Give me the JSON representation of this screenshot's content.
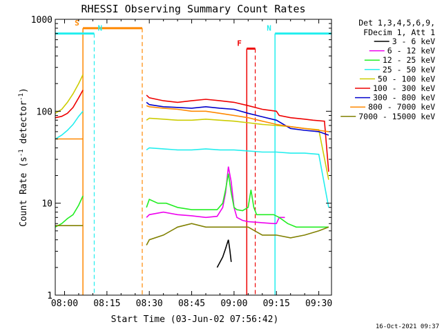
{
  "chart_data": {
    "type": "line",
    "title": "RHESSI Observing Summary Count Rates",
    "xlabel": "Start Time (03-Jun-02 07:56:42)",
    "ylabel_base": "Count Rate (s",
    "ylabel_sup": "-1",
    "ylabel_mid": " detector",
    "ylabel_tail": ")",
    "xaxis": {
      "unit": "minutes since 08:00",
      "range": [
        -3.3,
        94.5
      ],
      "ticks": [
        {
          "v": 0,
          "label": "08:00"
        },
        {
          "v": 15,
          "label": "08:15"
        },
        {
          "v": 30,
          "label": "08:30"
        },
        {
          "v": 45,
          "label": "08:45"
        },
        {
          "v": 60,
          "label": "09:00"
        },
        {
          "v": 75,
          "label": "09:15"
        },
        {
          "v": 90,
          "label": "09:30"
        }
      ]
    },
    "yaxis": {
      "scale": "log",
      "range": [
        1,
        1000
      ],
      "ticks": [
        {
          "v": 1,
          "label": "1"
        },
        {
          "v": 10,
          "label": "10"
        },
        {
          "v": 100,
          "label": "100"
        },
        {
          "v": 1000,
          "label": "1000"
        }
      ]
    },
    "legend": {
      "position": "right",
      "header1": "Det 1,3,4,5,6,9,",
      "header2": "FDecim 1, Att 1",
      "entries": [
        {
          "label": "3 - 6 keV",
          "color": "#000000"
        },
        {
          "label": "6 - 12 keV",
          "color": "#ee00ee"
        },
        {
          "label": "12 - 25 keV",
          "color": "#22ee22"
        },
        {
          "label": "25 - 50 keV",
          "color": "#22eeee"
        },
        {
          "label": "50 - 100 keV",
          "color": "#cccc00"
        },
        {
          "label": "100 - 300 keV",
          "color": "#ee0000"
        },
        {
          "label": "300 - 800 keV",
          "color": "#0000cc"
        },
        {
          "label": "800 - 7000 keV",
          "color": "#ff8800"
        },
        {
          "label": "7000 - 15000 keV",
          "color": "#808000"
        }
      ]
    },
    "flags": [
      {
        "label": "S",
        "color": "#ff8800",
        "start": 6.5,
        "end": 27.5,
        "bar_y": 800
      },
      {
        "label": "N",
        "color": "#22eeee",
        "start": -3.3,
        "end": 10.5,
        "bar_y": 700
      },
      {
        "label": "N",
        "color": "#22eeee",
        "start": 74.5,
        "end": 94.5,
        "bar_y": 700
      },
      {
        "label": "F",
        "color": "#ee0000",
        "start": 64.5,
        "end": 67.5,
        "bar_y": 480
      }
    ],
    "series": [
      {
        "name": "3 - 6 keV",
        "color": "#000000",
        "segments": [
          {
            "x": [
              54,
              56,
              57,
              57.5,
              58,
              58.5,
              59
            ],
            "y": [
              2,
              2.6,
              3.2,
              3.6,
              4,
              3.1,
              2.3
            ]
          }
        ]
      },
      {
        "name": "6 - 12 keV",
        "color": "#ee00ee",
        "segments": [
          {
            "x": [
              29,
              30,
              35,
              40,
              45,
              50,
              54,
              56,
              57,
              58,
              59,
              60,
              61,
              63,
              65,
              68,
              71,
              74,
              75,
              76,
              78
            ],
            "y": [
              7,
              7.5,
              8,
              7.5,
              7.3,
              7,
              7.2,
              9,
              13,
              25,
              17,
              9,
              7,
              6.5,
              6.3,
              6.2,
              6.1,
              6,
              6,
              7,
              7
            ]
          }
        ]
      },
      {
        "name": "12 - 25 keV",
        "color": "#22ee22",
        "segments": [
          {
            "x": [
              -3.3,
              -1,
              1,
              3,
              5,
              6.5
            ],
            "y": [
              5.5,
              6,
              6.8,
              7.5,
              9.5,
              12
            ]
          },
          {
            "x": [
              29,
              30,
              33,
              36,
              40,
              45,
              50,
              54,
              56,
              57,
              58,
              59,
              60,
              61,
              63,
              65,
              66,
              67,
              68,
              71,
              74,
              76,
              79,
              82,
              86,
              90,
              93.5
            ],
            "y": [
              9,
              11,
              10,
              10,
              9,
              8.5,
              8.5,
              8.5,
              10,
              14,
              21,
              13,
              9,
              8.5,
              8.3,
              9,
              14,
              9,
              7.5,
              7.5,
              7.5,
              7,
              6,
              5.5,
              5.5,
              5.5,
              5.5
            ]
          }
        ]
      },
      {
        "name": "25 - 50 keV",
        "color": "#22eeee",
        "segments": [
          {
            "x": [
              -3.3,
              -1,
              1,
              3,
              5,
              6.5
            ],
            "y": [
              50,
              55,
              62,
              72,
              88,
              100
            ]
          },
          {
            "x": [
              29,
              30,
              35,
              40,
              45,
              50,
              55,
              60,
              65,
              70,
              75,
              80,
              85,
              90,
              93.5
            ],
            "y": [
              38,
              40,
              39,
              38,
              38,
              39,
              38,
              38,
              37,
              36,
              36,
              35,
              35,
              34,
              9
            ]
          }
        ]
      },
      {
        "name": "50 - 100 keV",
        "color": "#cccc00",
        "segments": [
          {
            "x": [
              -3.3,
              -1,
              1,
              3,
              5,
              6.5
            ],
            "y": [
              95,
              105,
              125,
              155,
              200,
              250
            ]
          },
          {
            "x": [
              29,
              30,
              35,
              40,
              45,
              50,
              55,
              60,
              65,
              70,
              75,
              80,
              85,
              90,
              93.5
            ],
            "y": [
              80,
              84,
              82,
              80,
              80,
              82,
              80,
              78,
              75,
              72,
              70,
              68,
              65,
              63,
              18
            ]
          }
        ]
      },
      {
        "name": "100 - 300 keV",
        "color": "#ee0000",
        "segments": [
          {
            "x": [
              -3.3,
              -1,
              1,
              3,
              5,
              6.5
            ],
            "y": [
              85,
              88,
              95,
              110,
              140,
              170
            ]
          },
          {
            "x": [
              29,
              30,
              35,
              40,
              45,
              50,
              55,
              60,
              65,
              70,
              75,
              76,
              80,
              85,
              88,
              92,
              93.5
            ],
            "y": [
              150,
              140,
              130,
              125,
              130,
              135,
              130,
              125,
              115,
              105,
              100,
              90,
              85,
              82,
              80,
              78,
              22
            ]
          }
        ]
      },
      {
        "name": "300 - 800 keV",
        "color": "#0000cc",
        "segments": [
          {
            "x": [
              29,
              30,
              35,
              40,
              45,
              50,
              55,
              60,
              65,
              70,
              75,
              80,
              85,
              90,
              93.5
            ],
            "y": [
              125,
              118,
              112,
              110,
              108,
              112,
              108,
              105,
              95,
              87,
              80,
              65,
              62,
              60,
              55
            ]
          }
        ]
      },
      {
        "name": "800 - 7000 keV",
        "color": "#ff8800",
        "segments": [
          {
            "x": [
              -3.3,
              6.5
            ],
            "y": [
              50,
              50
            ]
          },
          {
            "x": [
              29,
              30,
              35,
              40,
              45,
              50,
              55,
              60,
              65,
              70,
              75,
              80,
              85,
              90,
              93.5
            ],
            "y": [
              115,
              112,
              108,
              105,
              100,
              100,
              95,
              90,
              85,
              78,
              72,
              68,
              65,
              62,
              60
            ]
          }
        ]
      },
      {
        "name": "7000 - 15000 keV",
        "color": "#808000",
        "segments": [
          {
            "x": [
              -3.3,
              6.5
            ],
            "y": [
              5.7,
              5.7
            ]
          },
          {
            "x": [
              29,
              30,
              35,
              40,
              45,
              50,
              55,
              60,
              65,
              70,
              75,
              80,
              85,
              90,
              93.5
            ],
            "y": [
              3.5,
              4,
              4.5,
              5.5,
              6,
              5.5,
              5.5,
              5.5,
              5.5,
              4.5,
              4.5,
              4.2,
              4.5,
              5,
              5.5
            ]
          }
        ]
      }
    ]
  },
  "timestamp": "16-Oct-2021 09:37"
}
